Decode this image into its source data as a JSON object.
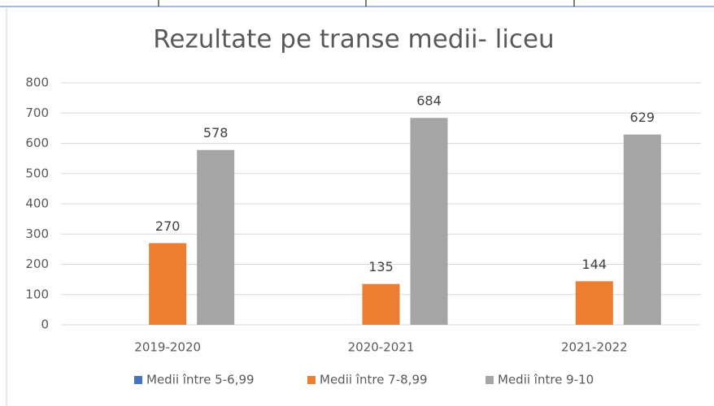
{
  "chart_data": {
    "type": "bar",
    "title": "Rezultate pe transe medii- liceu",
    "categories": [
      "2019-2020",
      "2020-2021",
      "2021-2022"
    ],
    "series": [
      {
        "name": "Medii între 5-6,99",
        "color": "#4472c4",
        "values": [
          null,
          null,
          null
        ]
      },
      {
        "name": "Medii între 7-8,99",
        "color": "#ed7d31",
        "values": [
          270,
          135,
          144
        ]
      },
      {
        "name": "Medii între 9-10",
        "color": "#a5a5a5",
        "values": [
          578,
          684,
          629
        ]
      }
    ],
    "ylim": [
      0,
      800
    ],
    "yticks": [
      0,
      100,
      200,
      300,
      400,
      500,
      600,
      700,
      800
    ],
    "grid": true,
    "legend": "bottom"
  }
}
